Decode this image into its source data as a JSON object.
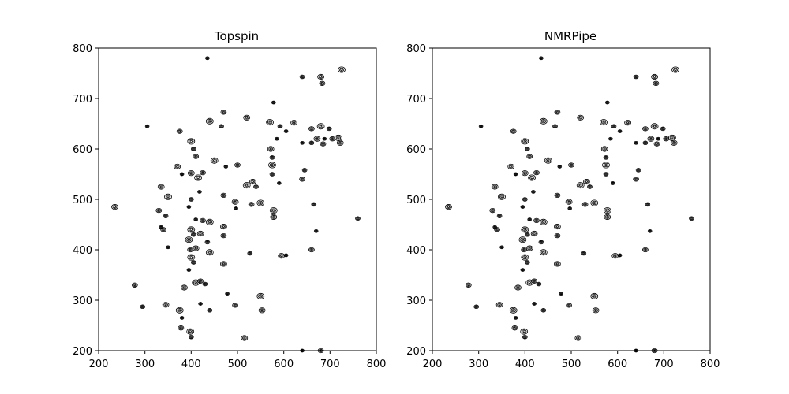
{
  "chart_data": [
    {
      "type": "contour",
      "title": "Topspin",
      "xlabel": "",
      "ylabel": "",
      "xlim": [
        200,
        800
      ],
      "ylim": [
        200,
        800
      ],
      "xticks": [
        "200",
        "300",
        "400",
        "500",
        "600",
        "700",
        "800"
      ],
      "yticks": [
        "200",
        "300",
        "400",
        "500",
        "600",
        "700",
        "800"
      ],
      "grid": false,
      "contour_color": "#000000",
      "peaks": [
        [
          435,
          780
        ],
        [
          683,
          730
        ],
        [
          725,
          757
        ],
        [
          640,
          743
        ],
        [
          680,
          743
        ],
        [
          578,
          692
        ],
        [
          470,
          673
        ],
        [
          440,
          655
        ],
        [
          465,
          645
        ],
        [
          520,
          662
        ],
        [
          305,
          645
        ],
        [
          375,
          635
        ],
        [
          570,
          653
        ],
        [
          592,
          645
        ],
        [
          622,
          652
        ],
        [
          605,
          635
        ],
        [
          660,
          640
        ],
        [
          680,
          645
        ],
        [
          698,
          640
        ],
        [
          672,
          620
        ],
        [
          688,
          620
        ],
        [
          705,
          620
        ],
        [
          718,
          622
        ],
        [
          660,
          612
        ],
        [
          722,
          612
        ],
        [
          640,
          612
        ],
        [
          685,
          610
        ],
        [
          400,
          615
        ],
        [
          405,
          600
        ],
        [
          572,
          600
        ],
        [
          585,
          620
        ],
        [
          410,
          585
        ],
        [
          450,
          577
        ],
        [
          575,
          583
        ],
        [
          370,
          565
        ],
        [
          475,
          565
        ],
        [
          500,
          568
        ],
        [
          575,
          568
        ],
        [
          645,
          558
        ],
        [
          400,
          552
        ],
        [
          380,
          550
        ],
        [
          425,
          553
        ],
        [
          415,
          543
        ],
        [
          575,
          550
        ],
        [
          533,
          535
        ],
        [
          590,
          532
        ],
        [
          640,
          540
        ],
        [
          520,
          528
        ],
        [
          540,
          525
        ],
        [
          335,
          525
        ],
        [
          418,
          515
        ],
        [
          470,
          508
        ],
        [
          350,
          505
        ],
        [
          400,
          500
        ],
        [
          495,
          495
        ],
        [
          497,
          482
        ],
        [
          530,
          490
        ],
        [
          550,
          493
        ],
        [
          665,
          490
        ],
        [
          235,
          485
        ],
        [
          395,
          485
        ],
        [
          330,
          478
        ],
        [
          578,
          478
        ],
        [
          345,
          467
        ],
        [
          578,
          465
        ],
        [
          410,
          460
        ],
        [
          425,
          458
        ],
        [
          440,
          455
        ],
        [
          760,
          462
        ],
        [
          470,
          446
        ],
        [
          335,
          445
        ],
        [
          340,
          440
        ],
        [
          400,
          440
        ],
        [
          405,
          430
        ],
        [
          420,
          432
        ],
        [
          670,
          437
        ],
        [
          470,
          428
        ],
        [
          395,
          420
        ],
        [
          435,
          415
        ],
        [
          410,
          403
        ],
        [
          350,
          405
        ],
        [
          398,
          400
        ],
        [
          440,
          395
        ],
        [
          527,
          393
        ],
        [
          595,
          388
        ],
        [
          605,
          389
        ],
        [
          660,
          400
        ],
        [
          400,
          385
        ],
        [
          405,
          375
        ],
        [
          470,
          372
        ],
        [
          395,
          360
        ],
        [
          420,
          338
        ],
        [
          410,
          335
        ],
        [
          430,
          332
        ],
        [
          385,
          325
        ],
        [
          478,
          313
        ],
        [
          278,
          330
        ],
        [
          550,
          308
        ],
        [
          295,
          287
        ],
        [
          345,
          291
        ],
        [
          420,
          293
        ],
        [
          495,
          290
        ],
        [
          375,
          280
        ],
        [
          440,
          280
        ],
        [
          553,
          280
        ],
        [
          380,
          265
        ],
        [
          378,
          245
        ],
        [
          398,
          238
        ],
        [
          400,
          227
        ],
        [
          515,
          225
        ],
        [
          640,
          200
        ],
        [
          680,
          200
        ]
      ]
    },
    {
      "type": "contour",
      "title": "NMRPipe",
      "xlabel": "",
      "ylabel": "",
      "xlim": [
        200,
        800
      ],
      "ylim": [
        200,
        800
      ],
      "xticks": [
        "200",
        "300",
        "400",
        "500",
        "600",
        "700",
        "800"
      ],
      "yticks": [
        "200",
        "300",
        "400",
        "500",
        "600",
        "700",
        "800"
      ],
      "grid": false,
      "contour_color": "#000000",
      "peaks": [
        [
          435,
          780
        ],
        [
          683,
          730
        ],
        [
          725,
          757
        ],
        [
          640,
          743
        ],
        [
          680,
          743
        ],
        [
          578,
          692
        ],
        [
          470,
          673
        ],
        [
          440,
          655
        ],
        [
          465,
          645
        ],
        [
          520,
          662
        ],
        [
          305,
          645
        ],
        [
          375,
          635
        ],
        [
          570,
          653
        ],
        [
          592,
          645
        ],
        [
          622,
          652
        ],
        [
          605,
          635
        ],
        [
          660,
          640
        ],
        [
          680,
          645
        ],
        [
          698,
          640
        ],
        [
          672,
          620
        ],
        [
          688,
          620
        ],
        [
          705,
          620
        ],
        [
          718,
          622
        ],
        [
          660,
          612
        ],
        [
          722,
          612
        ],
        [
          640,
          612
        ],
        [
          685,
          610
        ],
        [
          400,
          615
        ],
        [
          405,
          600
        ],
        [
          572,
          600
        ],
        [
          585,
          620
        ],
        [
          410,
          585
        ],
        [
          450,
          577
        ],
        [
          575,
          583
        ],
        [
          370,
          565
        ],
        [
          475,
          565
        ],
        [
          500,
          568
        ],
        [
          575,
          568
        ],
        [
          645,
          558
        ],
        [
          400,
          552
        ],
        [
          380,
          550
        ],
        [
          425,
          553
        ],
        [
          415,
          543
        ],
        [
          575,
          550
        ],
        [
          533,
          535
        ],
        [
          590,
          532
        ],
        [
          640,
          540
        ],
        [
          520,
          528
        ],
        [
          540,
          525
        ],
        [
          335,
          525
        ],
        [
          418,
          515
        ],
        [
          470,
          508
        ],
        [
          350,
          505
        ],
        [
          400,
          500
        ],
        [
          495,
          495
        ],
        [
          497,
          482
        ],
        [
          530,
          490
        ],
        [
          550,
          493
        ],
        [
          665,
          490
        ],
        [
          235,
          485
        ],
        [
          395,
          485
        ],
        [
          330,
          478
        ],
        [
          578,
          478
        ],
        [
          345,
          467
        ],
        [
          578,
          465
        ],
        [
          410,
          460
        ],
        [
          425,
          458
        ],
        [
          440,
          455
        ],
        [
          760,
          462
        ],
        [
          470,
          446
        ],
        [
          335,
          445
        ],
        [
          340,
          440
        ],
        [
          400,
          440
        ],
        [
          405,
          430
        ],
        [
          420,
          432
        ],
        [
          670,
          437
        ],
        [
          470,
          428
        ],
        [
          395,
          420
        ],
        [
          435,
          415
        ],
        [
          410,
          403
        ],
        [
          350,
          405
        ],
        [
          398,
          400
        ],
        [
          440,
          395
        ],
        [
          527,
          393
        ],
        [
          595,
          388
        ],
        [
          605,
          389
        ],
        [
          660,
          400
        ],
        [
          400,
          385
        ],
        [
          405,
          375
        ],
        [
          470,
          372
        ],
        [
          395,
          360
        ],
        [
          420,
          338
        ],
        [
          410,
          335
        ],
        [
          430,
          332
        ],
        [
          385,
          325
        ],
        [
          478,
          313
        ],
        [
          278,
          330
        ],
        [
          550,
          308
        ],
        [
          295,
          287
        ],
        [
          345,
          291
        ],
        [
          420,
          293
        ],
        [
          495,
          290
        ],
        [
          375,
          280
        ],
        [
          440,
          280
        ],
        [
          553,
          280
        ],
        [
          380,
          265
        ],
        [
          378,
          245
        ],
        [
          398,
          238
        ],
        [
          400,
          227
        ],
        [
          515,
          225
        ],
        [
          640,
          200
        ],
        [
          680,
          200
        ]
      ]
    }
  ]
}
